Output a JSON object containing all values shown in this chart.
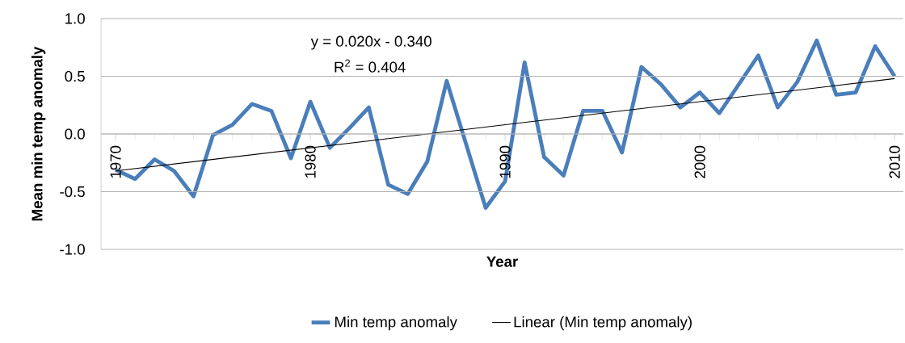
{
  "chart_data": {
    "type": "line",
    "xlabel": "Year",
    "ylabel": "Mean min temp anomaly",
    "x": [
      1970,
      1971,
      1972,
      1973,
      1974,
      1975,
      1976,
      1977,
      1978,
      1979,
      1980,
      1981,
      1982,
      1983,
      1984,
      1985,
      1986,
      1987,
      1988,
      1989,
      1990,
      1991,
      1992,
      1993,
      1994,
      1995,
      1996,
      1997,
      1998,
      1999,
      2000,
      2001,
      2002,
      2003,
      2004,
      2005,
      2006,
      2007,
      2008,
      2009,
      2010
    ],
    "series": [
      {
        "name": "Min temp anomaly",
        "color": "#4a7ebb",
        "values": [
          -0.31,
          -0.39,
          -0.22,
          -0.32,
          -0.54,
          -0.01,
          0.08,
          0.26,
          0.2,
          -0.21,
          0.28,
          -0.12,
          0.05,
          0.23,
          -0.44,
          -0.52,
          -0.24,
          0.46,
          -0.09,
          -0.64,
          -0.41,
          0.62,
          -0.2,
          -0.36,
          0.2,
          0.2,
          -0.16,
          0.58,
          0.43,
          0.23,
          0.36,
          0.18,
          0.43,
          0.68,
          0.23,
          0.45,
          0.81,
          0.34,
          0.36,
          0.76,
          0.5
        ]
      },
      {
        "name": "Linear (Min temp anomaly)",
        "type": "line",
        "color": "#000000",
        "x": [
          1970,
          2010
        ],
        "values": [
          -0.32,
          0.48
        ]
      }
    ],
    "annotations": [
      "y = 0.020x - 0.340",
      "R$^{2}$ = 0.404"
    ],
    "xlim": [
      1969.25,
      2010.45
    ],
    "xticks": [
      1970,
      1980,
      1990,
      2000,
      2010
    ],
    "ylim": [
      -1.0,
      1.0
    ],
    "yticks": [
      {
        "value": -1.0,
        "label": "-1.0"
      },
      {
        "value": -0.5,
        "label": "-0.5"
      },
      {
        "value": 0.0,
        "label": "0.0"
      },
      {
        "value": 0.5,
        "label": "0.5"
      },
      {
        "value": 1.0,
        "label": "1.0"
      }
    ],
    "grid": "y",
    "legend": "bottom"
  }
}
